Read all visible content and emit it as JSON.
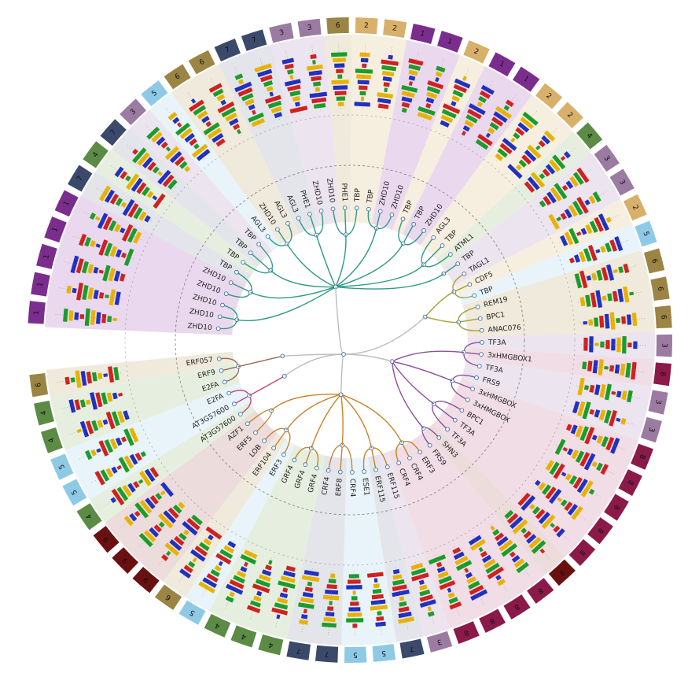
{
  "leaves": [
    {
      "name": "ZHD10",
      "cluster": "1",
      "clade": "teal"
    },
    {
      "name": "ZHD10",
      "cluster": "1",
      "clade": "teal"
    },
    {
      "name": "ZHD10",
      "cluster": "1",
      "clade": "teal"
    },
    {
      "name": "ZHD10",
      "cluster": "1",
      "clade": "teal"
    },
    {
      "name": "ZHD10",
      "cluster": "1",
      "clade": "teal"
    },
    {
      "name": "TBP",
      "cluster": "7",
      "clade": "teal"
    },
    {
      "name": "TBP",
      "cluster": "4",
      "clade": "teal"
    },
    {
      "name": "TBP",
      "cluster": "7",
      "clade": "teal"
    },
    {
      "name": "TBP",
      "cluster": "3",
      "clade": "teal"
    },
    {
      "name": "AGL3",
      "cluster": "5",
      "clade": "teal"
    },
    {
      "name": "ZHD10",
      "cluster": "6",
      "clade": "teal"
    },
    {
      "name": "AGL3",
      "cluster": "6",
      "clade": "teal"
    },
    {
      "name": "AGL3",
      "cluster": "7",
      "clade": "teal"
    },
    {
      "name": "PHE1",
      "cluster": "7",
      "clade": "teal"
    },
    {
      "name": "ZHD10",
      "cluster": "3",
      "clade": "teal"
    },
    {
      "name": "ZHD10",
      "cluster": "3",
      "clade": "teal"
    },
    {
      "name": "PHE1",
      "cluster": "6",
      "clade": "teal"
    },
    {
      "name": "TBP",
      "cluster": "2",
      "clade": "teal"
    },
    {
      "name": "TBP",
      "cluster": "2",
      "clade": "teal"
    },
    {
      "name": "ZHD10",
      "cluster": "1",
      "clade": "teal"
    },
    {
      "name": "ZHD10",
      "cluster": "1",
      "clade": "teal"
    },
    {
      "name": "TBP",
      "cluster": "2",
      "clade": "teal"
    },
    {
      "name": "TBP",
      "cluster": "1",
      "clade": "teal"
    },
    {
      "name": "ZHD10",
      "cluster": "1",
      "clade": "teal"
    },
    {
      "name": "AGL3",
      "cluster": "2",
      "clade": "teal"
    },
    {
      "name": "TBP",
      "cluster": "2",
      "clade": "teal"
    },
    {
      "name": "ATML1",
      "cluster": "4",
      "clade": "teal"
    },
    {
      "name": "TBP",
      "cluster": "3",
      "clade": "teal"
    },
    {
      "name": "TAGL1",
      "cluster": "3",
      "clade": "olive"
    },
    {
      "name": "CDF5",
      "cluster": "2",
      "clade": "olive"
    },
    {
      "name": "TBP",
      "cluster": "5",
      "clade": "olive"
    },
    {
      "name": "REM19",
      "cluster": "6",
      "clade": "olive"
    },
    {
      "name": "BPC1",
      "cluster": "6",
      "clade": "olive"
    },
    {
      "name": "ANAC076",
      "cluster": "6",
      "clade": "olive"
    },
    {
      "name": "TF3A",
      "cluster": "3",
      "clade": "purple"
    },
    {
      "name": "3xHMGBOX1",
      "cluster": "8",
      "clade": "purple"
    },
    {
      "name": "TF3A",
      "cluster": "3",
      "clade": "purple"
    },
    {
      "name": "FRS9",
      "cluster": "3",
      "clade": "purple"
    },
    {
      "name": "3xHMGBOX",
      "cluster": "8",
      "clade": "purple"
    },
    {
      "name": "3xHMGBOX",
      "cluster": "8",
      "clade": "purple"
    },
    {
      "name": "BPC1",
      "cluster": "8",
      "clade": "purple"
    },
    {
      "name": "TF3A",
      "cluster": "8",
      "clade": "purple"
    },
    {
      "name": "TF3A",
      "cluster": "8",
      "clade": "purple"
    },
    {
      "name": "SHN3",
      "cluster": "9",
      "clade": "purple"
    },
    {
      "name": "FRS9",
      "cluster": "8",
      "clade": "purple"
    },
    {
      "name": "ERF3",
      "cluster": "8",
      "clade": "orange"
    },
    {
      "name": "CRF4",
      "cluster": "8",
      "clade": "orange"
    },
    {
      "name": "CRF4",
      "cluster": "8",
      "clade": "orange"
    },
    {
      "name": "ERF115",
      "cluster": "3",
      "clade": "orange"
    },
    {
      "name": "ERF115",
      "cluster": "7",
      "clade": "orange"
    },
    {
      "name": "ESE1",
      "cluster": "5",
      "clade": "orange"
    },
    {
      "name": "CRF4",
      "cluster": "5",
      "clade": "orange"
    },
    {
      "name": "ERF8",
      "cluster": "7",
      "clade": "orange"
    },
    {
      "name": "CRF4",
      "cluster": "7",
      "clade": "orange"
    },
    {
      "name": "GRF4",
      "cluster": "4",
      "clade": "orange"
    },
    {
      "name": "GRF4",
      "cluster": "4",
      "clade": "orange"
    },
    {
      "name": "GRF4",
      "cluster": "4",
      "clade": "orange"
    },
    {
      "name": "ERF3",
      "cluster": "5",
      "clade": "orange"
    },
    {
      "name": "ERF104",
      "cluster": "6",
      "clade": "orange"
    },
    {
      "name": "LOB",
      "cluster": "9",
      "clade": "orange"
    },
    {
      "name": "ERF5",
      "cluster": "9",
      "clade": "orange"
    },
    {
      "name": "AZF1",
      "cluster": "9",
      "clade": "orange"
    },
    {
      "name": "AT3G57600",
      "cluster": "4",
      "clade": "pink"
    },
    {
      "name": "AT3G57600",
      "cluster": "5",
      "clade": "pink"
    },
    {
      "name": "E2FA",
      "cluster": "5",
      "clade": "pink"
    },
    {
      "name": "E2FA",
      "cluster": "4",
      "clade": "brown"
    },
    {
      "name": "ERF9",
      "cluster": "4",
      "clade": "brown"
    },
    {
      "name": "ERF057",
      "cluster": "6",
      "clade": "brown"
    }
  ],
  "cluster_colors": {
    "1": "#7b2d8e",
    "2": "#d8b06a",
    "3": "#9b7ba2",
    "4": "#5b8b45",
    "5": "#8ecae6",
    "6": "#9c8544",
    "7": "#3b4a6b",
    "8": "#8b1a4a",
    "9": "#6b1010"
  },
  "band_colors": {
    "1": "#ead9ee",
    "2": "#f6efe0",
    "3": "#ece4ee",
    "4": "#e6efdf",
    "5": "#e8f4fa",
    "6": "#efeadb",
    "7": "#e3e5ea",
    "8": "#f1dde5",
    "9": "#ecdcdc"
  },
  "clade_colors": {
    "teal": "#2e9a86",
    "olive": "#a3a23a",
    "purple": "#8e4f9a",
    "orange": "#c8832a",
    "pink": "#c2487a",
    "brown": "#9b6a4c",
    "grey": "#bdbdbd"
  },
  "logo_colors": [
    "#e8b200",
    "#1a9c2a",
    "#d12020",
    "#2030c0"
  ]
}
